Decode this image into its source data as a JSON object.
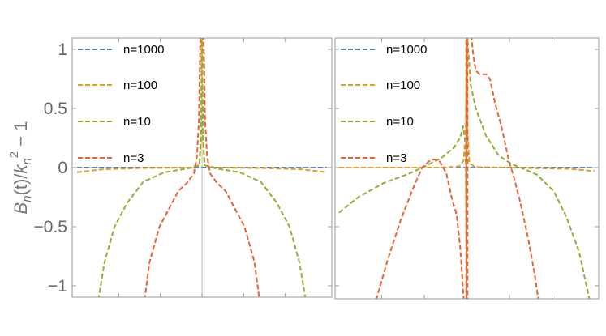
{
  "chart_data": [
    {
      "type": "line",
      "panel": "left",
      "ylabel": "B_n(t)/k_n^2 − 1",
      "ylabel_parts": {
        "B": "B",
        "n1": "n",
        "mid": "(t)/",
        "k": "k",
        "n2": "n",
        "sup": "2",
        "tail": " − 1"
      },
      "ylim": [
        -1.1,
        1.1
      ],
      "xlim": [
        -1,
        1
      ],
      "yticks": [
        1,
        0.5,
        0,
        -0.5,
        -1
      ],
      "ytick_labels": [
        "1",
        "0.5",
        "0",
        "−0.5",
        "−1"
      ],
      "xticks": [
        -0.667,
        -0.333,
        0,
        0.333,
        0.667
      ],
      "legend_placement": "top-left",
      "series": [
        {
          "name": "n=1000",
          "color": "#5E81B5",
          "segments": [
            [
              [
                -1,
                0
              ],
              [
                1,
                0
              ]
            ]
          ]
        },
        {
          "name": "n=100",
          "color": "#E19C24",
          "segments": [
            [
              [
                -1,
                -0.04
              ],
              [
                -0.8,
                -0.015
              ],
              [
                -0.5,
                -0.004
              ],
              [
                -0.1,
                0
              ],
              [
                -0.02,
                0.02
              ],
              [
                -0.006,
                0.3
              ],
              [
                0,
                1.2
              ],
              [
                0.006,
                0.3
              ],
              [
                0.02,
                0.02
              ],
              [
                0.1,
                0
              ],
              [
                0.5,
                -0.004
              ],
              [
                0.8,
                -0.015
              ],
              [
                1,
                -0.04
              ]
            ]
          ]
        },
        {
          "name": "n=10",
          "color": "#8FB032",
          "segments": [
            [
              [
                -0.83,
                -1.12
              ],
              [
                -0.78,
                -0.8
              ],
              [
                -0.7,
                -0.5
              ],
              [
                -0.6,
                -0.3
              ],
              [
                -0.47,
                -0.12
              ],
              [
                -0.3,
                -0.04
              ],
              [
                -0.1,
                -0.005
              ],
              [
                -0.02,
                0.02
              ],
              [
                -0.008,
                0.3
              ],
              [
                0,
                1.2
              ],
              [
                0.008,
                0.3
              ],
              [
                0.02,
                0.02
              ],
              [
                0.1,
                -0.005
              ],
              [
                0.3,
                -0.04
              ],
              [
                0.47,
                -0.12
              ],
              [
                0.6,
                -0.3
              ],
              [
                0.7,
                -0.5
              ],
              [
                0.78,
                -0.8
              ],
              [
                0.83,
                -1.12
              ]
            ]
          ]
        },
        {
          "name": "n=3",
          "color": "#EB6235",
          "segments": [
            [
              [
                -0.46,
                -1.12
              ],
              [
                -0.42,
                -0.8
              ],
              [
                -0.34,
                -0.5
              ],
              [
                -0.25,
                -0.32
              ],
              [
                -0.19,
                -0.2
              ],
              [
                -0.12,
                -0.13
              ],
              [
                -0.065,
                -0.05
              ],
              [
                -0.04,
                0.1
              ],
              [
                -0.025,
                0.4
              ],
              [
                -0.012,
                1.2
              ],
              [
                0.012,
                1.2
              ],
              [
                0.025,
                0.4
              ],
              [
                0.04,
                0.1
              ],
              [
                0.065,
                -0.05
              ],
              [
                0.12,
                -0.13
              ],
              [
                0.19,
                -0.2
              ],
              [
                0.25,
                -0.32
              ],
              [
                0.34,
                -0.5
              ],
              [
                0.42,
                -0.8
              ],
              [
                0.46,
                -1.12
              ]
            ]
          ]
        }
      ]
    },
    {
      "type": "line",
      "panel": "right",
      "ylim": [
        -1.1,
        1.1
      ],
      "xlim": [
        -1,
        1
      ],
      "yticks": [
        1,
        0.5,
        0,
        -0.5,
        -1
      ],
      "xticks": [
        -0.667,
        -0.333,
        0,
        0.333,
        0.667
      ],
      "legend_placement": "top-left",
      "series": [
        {
          "name": "n=1000",
          "color": "#5E81B5",
          "segments": [
            [
              [
                -1,
                0
              ],
              [
                1,
                0
              ]
            ]
          ]
        },
        {
          "name": "n=100",
          "color": "#E19C24",
          "segments": [
            [
              [
                -1,
                0
              ],
              [
                -0.2,
                0
              ],
              [
                -0.06,
                0.01
              ],
              [
                -0.025,
                0.06
              ],
              [
                -0.008,
                0.35
              ],
              [
                0,
                1.2
              ],
              [
                0.006,
                0.3
              ],
              [
                0.02,
                0.04
              ],
              [
                0.06,
                0.005
              ],
              [
                0.3,
                0
              ],
              [
                0.8,
                -0.01
              ],
              [
                1,
                -0.03
              ]
            ]
          ]
        },
        {
          "name": "n=10",
          "color": "#8FB032",
          "segments": [
            [
              [
                -1,
                -0.38
              ],
              [
                -0.85,
                -0.25
              ],
              [
                -0.65,
                -0.13
              ],
              [
                -0.45,
                -0.05
              ],
              [
                -0.35,
                0
              ],
              [
                -0.2,
                0.08
              ],
              [
                -0.1,
                0.17
              ],
              [
                -0.05,
                0.26
              ],
              [
                -0.03,
                0.35
              ],
              [
                -0.01,
                0.2
              ],
              [
                0,
                -1.2
              ]
            ],
            [
              [
                0,
                1.2
              ],
              [
                0.01,
                1.0
              ],
              [
                0.03,
                0.7
              ],
              [
                0.07,
                0.5
              ],
              [
                0.15,
                0.27
              ],
              [
                0.25,
                0.1
              ],
              [
                0.35,
                0.03
              ],
              [
                0.42,
                0
              ],
              [
                0.55,
                -0.06
              ],
              [
                0.68,
                -0.2
              ],
              [
                0.78,
                -0.42
              ],
              [
                0.88,
                -0.72
              ],
              [
                0.96,
                -1.12
              ]
            ]
          ]
        },
        {
          "name": "n=3",
          "color": "#EB6235",
          "segments": [
            [
              [
                -0.71,
                -1.12
              ],
              [
                -0.62,
                -0.78
              ],
              [
                -0.52,
                -0.45
              ],
              [
                -0.42,
                -0.17
              ],
              [
                -0.35,
                0
              ],
              [
                -0.3,
                0.05
              ],
              [
                -0.26,
                0.07
              ],
              [
                -0.21,
                0.05
              ],
              [
                -0.16,
                -0.05
              ],
              [
                -0.12,
                -0.25
              ],
              [
                -0.08,
                -0.4
              ],
              [
                -0.05,
                -0.7
              ],
              [
                -0.025,
                -1.12
              ]
            ],
            [
              [
                -0.005,
                -1.12
              ],
              [
                -0.005,
                1.12
              ]
            ],
            [
              [
                0.005,
                1.12
              ],
              [
                0.005,
                -1.12
              ]
            ],
            [
              [
                0.035,
                1.12
              ],
              [
                0.05,
                0.95
              ],
              [
                0.07,
                0.82
              ],
              [
                0.1,
                0.79
              ],
              [
                0.15,
                0.79
              ],
              [
                0.18,
                0.75
              ],
              [
                0.22,
                0.55
              ],
              [
                0.27,
                0.35
              ],
              [
                0.33,
                0.05
              ],
              [
                0.36,
                -0.05
              ],
              [
                0.42,
                -0.3
              ],
              [
                0.48,
                -0.6
              ],
              [
                0.53,
                -0.9
              ],
              [
                0.56,
                -1.12
              ]
            ]
          ]
        }
      ]
    }
  ]
}
